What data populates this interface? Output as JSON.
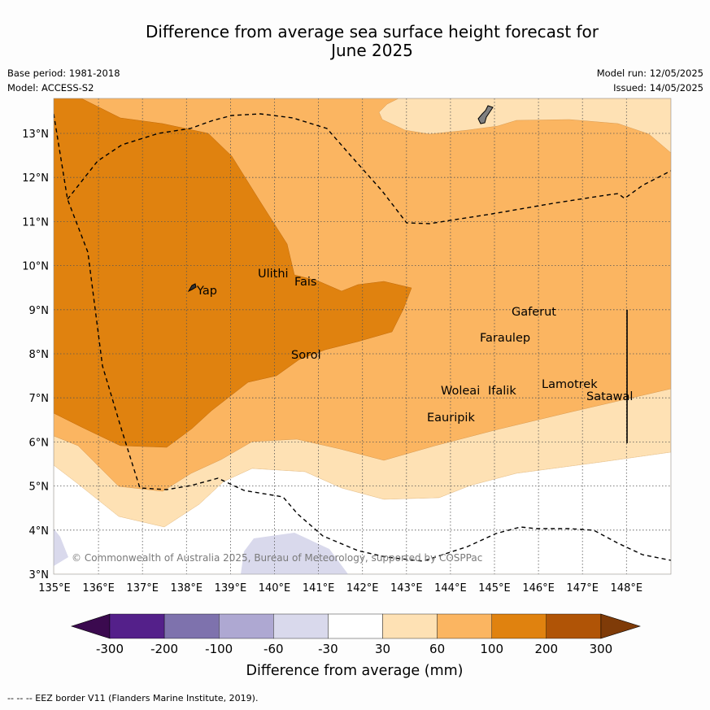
{
  "title_line1": "Difference from average sea surface height forecast for",
  "title_line2": "June 2025",
  "base_period": "Base period: 1981-2018",
  "model": "Model: ACCESS-S2",
  "model_run": "Model run: 12/05/2025",
  "issued": "Issued: 14/05/2025",
  "map": {
    "lon_labels": [
      "135°E",
      "136°E",
      "137°E",
      "138°E",
      "139°E",
      "140°E",
      "141°E",
      "142°E",
      "143°E",
      "144°E",
      "145°E",
      "146°E",
      "147°E",
      "148°E"
    ],
    "lat_labels": [
      "3°N",
      "4°N",
      "5°N",
      "6°N",
      "7°N",
      "8°N",
      "9°N",
      "10°N",
      "11°N",
      "12°N",
      "13°N"
    ],
    "places": [
      "Yap",
      "Ulithi",
      "Fais",
      "Sorol",
      "Woleai",
      "Ifalik",
      "Eauripik",
      "Faraulep",
      "Gaferut",
      "Lamotrek",
      "Satawal"
    ],
    "copyright": "© Commonwealth of Australia 2025, Bureau of Meteorology, supported by COSPPac"
  },
  "colorbar": {
    "ticks": [
      "-300",
      "-200",
      "-100",
      "-60",
      "-30",
      "30",
      "60",
      "100",
      "200",
      "300"
    ],
    "colors": [
      "#3b0a4f",
      "#54208a",
      "#7e72ad",
      "#aea8d2",
      "#d9d9ec",
      "#ffffff",
      "#fee1b4",
      "#fbb561",
      "#e0820f",
      "#b05406",
      "#7f3b08"
    ],
    "label": "Difference from average (mm)"
  },
  "footnote": "--  --  -- EEZ border V11 (Flanders Marine Institute, 2019)."
}
